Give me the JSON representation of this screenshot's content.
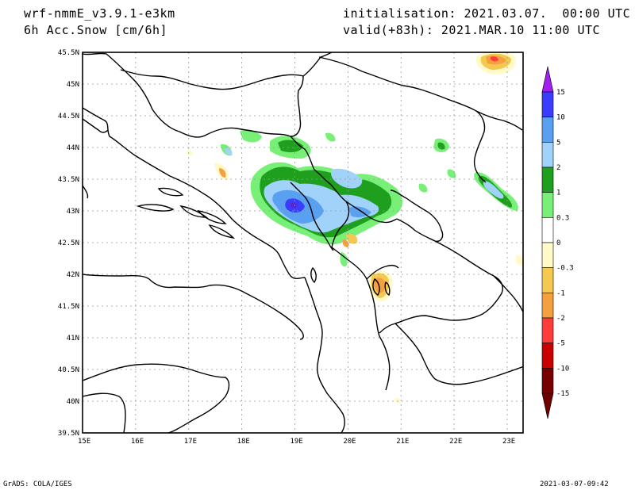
{
  "header": {
    "model": "wrf-nmmE_v3.9.1-e3km",
    "field": "6h Acc.Snow [cm/6h]",
    "init": "initialisation: 2021.03.07.  00:00 UTC",
    "valid": "valid(+83h): 2021.MAR.10 11:00 UTC"
  },
  "footer": {
    "left": "GrADS: COLA/IGES",
    "right": "2021-03-07-09:42"
  },
  "map": {
    "lon_range": [
      15,
      23.3
    ],
    "lat_range": [
      39.5,
      45.5
    ],
    "lon_ticks": [
      "15E",
      "16E",
      "17E",
      "18E",
      "19E",
      "20E",
      "21E",
      "22E",
      "23E"
    ],
    "lat_ticks": [
      "39.5N",
      "40N",
      "40.5N",
      "41N",
      "41.5N",
      "42N",
      "42.5N",
      "43N",
      "43.5N",
      "44N",
      "44.5N",
      "45N",
      "45.5N"
    ],
    "grid": "dotted"
  },
  "legend": {
    "labels": [
      "15",
      "10",
      "5",
      "2",
      "1",
      "0.3",
      "0",
      "-0.3",
      "-1",
      "-2",
      "-5",
      "-10",
      "-15"
    ],
    "colors": [
      "#3c3cff",
      "#5aa0f0",
      "#a0d2fa",
      "#1ea01e",
      "#78f078",
      "#ffffff",
      "#ffffff",
      "#fffac8",
      "#f5c850",
      "#f5a040",
      "#ff3c3c",
      "#c80000",
      "#780000"
    ],
    "top_arrow_color": "#a020f0",
    "bottom_arrow_color": "#6e0000"
  }
}
